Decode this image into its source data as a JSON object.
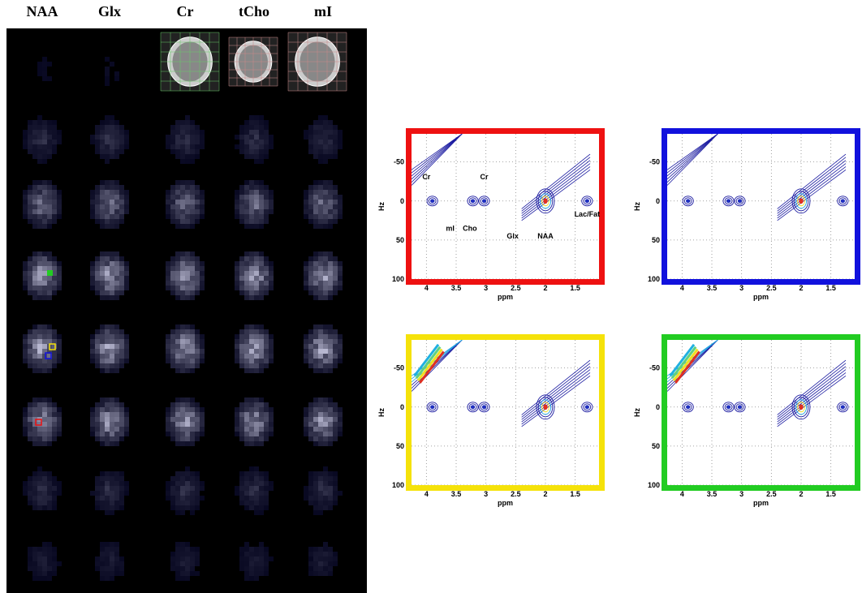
{
  "columns": [
    "NAA",
    "Glx",
    "Cr",
    "tCho",
    "mI"
  ],
  "spectra": {
    "xlabel": "ppm",
    "ylabel": "Hz",
    "xlim": [
      4.25,
      1.1
    ],
    "ylim": [
      -86,
      100
    ],
    "xticks": [
      4,
      3.5,
      3,
      2.5,
      2,
      1.5
    ],
    "yticks": [
      -50,
      0,
      50,
      100
    ],
    "peaks": [
      {
        "ppm": 3.9,
        "hz": 0
      },
      {
        "ppm": 3.22,
        "hz": 0
      },
      {
        "ppm": 3.03,
        "hz": 0
      },
      {
        "ppm": 2.0,
        "hz": 0
      },
      {
        "ppm": 1.3,
        "hz": 0
      }
    ],
    "annotations": [
      {
        "text": "Cr",
        "ppm": 4.0,
        "hz": -28
      },
      {
        "text": "Cr",
        "ppm": 3.03,
        "hz": -28
      },
      {
        "text": "mI",
        "ppm": 3.6,
        "hz": 38
      },
      {
        "text": "Cho",
        "ppm": 3.27,
        "hz": 38
      },
      {
        "text": "Glx",
        "ppm": 2.55,
        "hz": 48
      },
      {
        "text": "NAA",
        "ppm": 2.0,
        "hz": 48
      },
      {
        "text": "Lac/Fat",
        "ppm": 1.3,
        "hz": 20
      }
    ],
    "panels": [
      {
        "color": "#ee1111"
      },
      {
        "color": "#1111dd"
      },
      {
        "color": "#f5e20a"
      },
      {
        "color": "#22cc22"
      }
    ]
  }
}
